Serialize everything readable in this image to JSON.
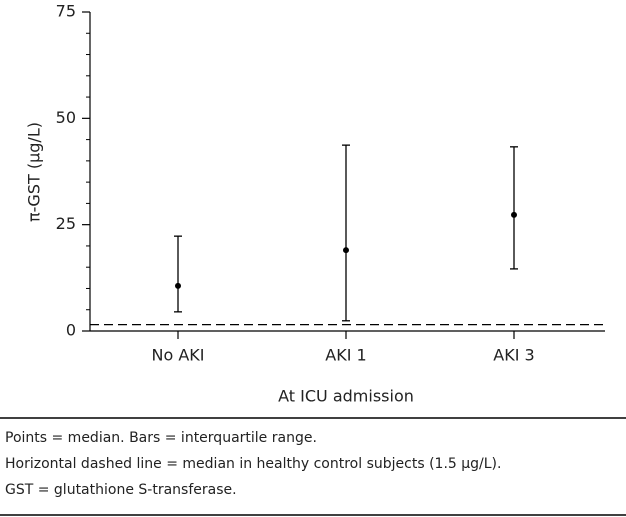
{
  "chart_data": {
    "type": "median-iqr",
    "ylabel": "π-GST (μg/L)",
    "xlabel": "At ICU admission",
    "categories": [
      "No AKI",
      "AKI 1",
      "AKI 3"
    ],
    "values": [
      10.6,
      19.0,
      27.3
    ],
    "lower": [
      4.5,
      2.4,
      14.6
    ],
    "upper": [
      22.3,
      43.7,
      43.3
    ],
    "reference_line": 1.5,
    "color": "#000000",
    "ylim": [
      0,
      75
    ],
    "yticks": [
      0,
      25,
      50,
      75
    ],
    "yminorticks": [
      5,
      10,
      15,
      20,
      30,
      35,
      40,
      45,
      55,
      60,
      65,
      70
    ]
  },
  "notes": [
    "Points = median. Bars = interquartile range.",
    "Horizontal dashed line = median in healthy control subjects (1.5 μg/L).",
    "GST = glutathione S-transferase."
  ]
}
